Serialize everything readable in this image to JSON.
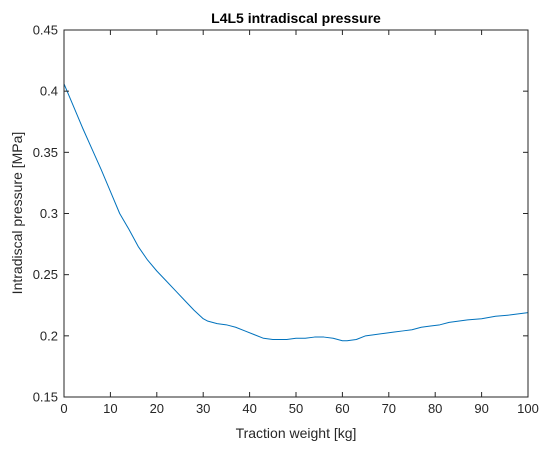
{
  "chart_data": {
    "type": "line",
    "title": "L4L5 intradiscal pressure",
    "xlabel": "Traction weight [kg]",
    "ylabel": "Intradiscal pressure [MPa]",
    "xlim": [
      0,
      100
    ],
    "ylim": [
      0.15,
      0.45
    ],
    "xticks": [
      "0",
      "10",
      "20",
      "30",
      "40",
      "50",
      "60",
      "70",
      "80",
      "90",
      "100"
    ],
    "yticks": [
      "0.15",
      "0.2",
      "0.25",
      "0.3",
      "0.35",
      "0.4",
      "0.45"
    ],
    "grid": false,
    "series": [
      {
        "color": "#0072BD",
        "x": [
          0,
          2,
          4,
          6,
          8,
          10,
          12,
          14,
          16,
          18,
          20,
          22,
          24,
          26,
          28,
          30,
          31,
          32,
          33,
          35,
          37,
          39,
          41,
          43,
          45,
          47,
          48,
          50,
          52,
          54,
          56,
          58,
          60,
          61,
          63,
          65,
          67,
          69,
          71,
          73,
          75,
          77,
          79,
          81,
          83,
          85,
          87,
          90,
          93,
          96,
          100
        ],
        "y": [
          0.406,
          0.388,
          0.37,
          0.353,
          0.336,
          0.318,
          0.3,
          0.287,
          0.273,
          0.262,
          0.253,
          0.245,
          0.237,
          0.229,
          0.221,
          0.214,
          0.212,
          0.211,
          0.21,
          0.209,
          0.207,
          0.204,
          0.201,
          0.198,
          0.197,
          0.197,
          0.197,
          0.198,
          0.198,
          0.199,
          0.199,
          0.198,
          0.196,
          0.196,
          0.197,
          0.2,
          0.201,
          0.202,
          0.203,
          0.204,
          0.205,
          0.207,
          0.208,
          0.209,
          0.211,
          0.212,
          0.213,
          0.214,
          0.216,
          0.217,
          0.219
        ]
      }
    ]
  }
}
